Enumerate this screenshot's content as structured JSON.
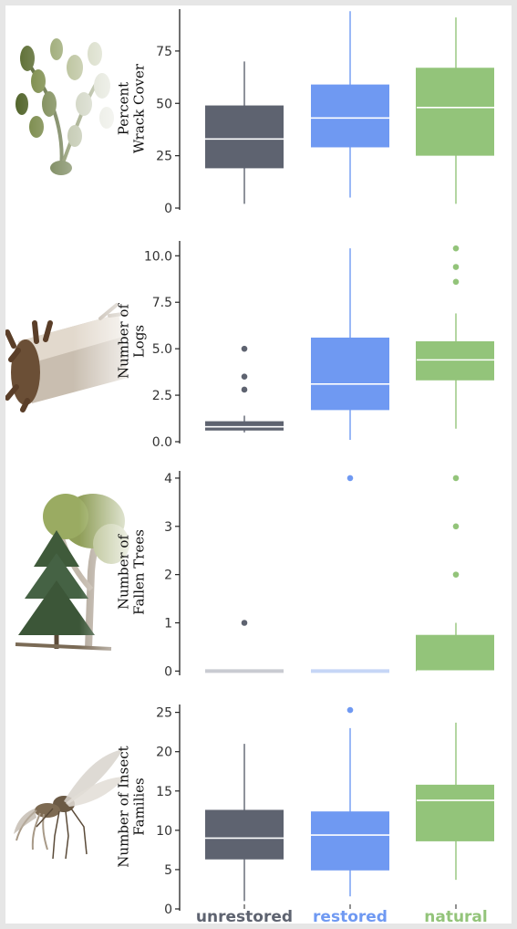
{
  "colors": {
    "unrestored": "#5e6370",
    "restored": "#6f99f2",
    "natural": "#93c47a",
    "unrestored_light": "#c9cbd2",
    "restored_light": "#c6d6f6"
  },
  "icons": [
    "seaweed-icon",
    "log-icon",
    "trees-icon",
    "insect-icon"
  ],
  "chart_data": [
    {
      "type": "box",
      "ylabel": [
        "Percent",
        "Wrack Cover"
      ],
      "ylim": [
        0,
        95
      ],
      "yticks": [
        0,
        25,
        50,
        75
      ],
      "ytick_labels": [
        "0",
        "25",
        "50",
        "75"
      ],
      "categories": [
        "unrestored",
        "restored",
        "natural"
      ],
      "boxes": [
        {
          "category": "unrestored",
          "min": 2,
          "q1": 19,
          "median": 33,
          "q3": 49,
          "max": 70,
          "outliers": []
        },
        {
          "category": "restored",
          "min": 5,
          "q1": 29,
          "median": 43,
          "q3": 59,
          "max": 94,
          "outliers": []
        },
        {
          "category": "natural",
          "min": 2,
          "q1": 25,
          "median": 48,
          "q3": 67,
          "max": 91,
          "outliers": []
        }
      ]
    },
    {
      "type": "box",
      "ylabel": [
        "Number of",
        "Logs"
      ],
      "ylim": [
        0,
        10.8
      ],
      "yticks": [
        0,
        2.5,
        5,
        7.5,
        10
      ],
      "ytick_labels": [
        "0.0",
        "2.5",
        "5.0",
        "7.5",
        "10.0"
      ],
      "categories": [
        "unrestored",
        "restored",
        "natural"
      ],
      "boxes": [
        {
          "category": "unrestored",
          "min": 0.5,
          "q1": 0.6,
          "median": 0.8,
          "q3": 1.1,
          "max": 1.4,
          "outliers": [
            2.8,
            3.5,
            5.0
          ]
        },
        {
          "category": "restored",
          "min": 0.1,
          "q1": 1.7,
          "median": 3.1,
          "q3": 5.6,
          "max": 10.4,
          "outliers": []
        },
        {
          "category": "natural",
          "min": 0.7,
          "q1": 3.3,
          "median": 4.4,
          "q3": 5.4,
          "max": 6.9,
          "outliers": [
            8.6,
            9.4,
            10.4
          ]
        }
      ]
    },
    {
      "type": "box",
      "ylabel": [
        "Number of",
        "Fallen Trees"
      ],
      "ylim": [
        -0.05,
        4.15
      ],
      "yticks": [
        0,
        1,
        2,
        3,
        4
      ],
      "ytick_labels": [
        "0",
        "1",
        "2",
        "3",
        "4"
      ],
      "categories": [
        "unrestored",
        "restored",
        "natural"
      ],
      "boxes": [
        {
          "category": "unrestored",
          "min": 0,
          "q1": 0,
          "median": 0,
          "q3": 0,
          "max": 0,
          "outliers": [
            1
          ]
        },
        {
          "category": "restored",
          "min": 0,
          "q1": 0,
          "median": 0,
          "q3": 0,
          "max": 0,
          "outliers": [
            4
          ]
        },
        {
          "category": "natural",
          "min": 0,
          "q1": 0,
          "median": 0,
          "q3": 0.75,
          "max": 1,
          "outliers": [
            2,
            3,
            4
          ]
        }
      ]
    },
    {
      "type": "box",
      "ylabel": [
        "Number of Insect",
        "Families"
      ],
      "ylim": [
        0,
        26
      ],
      "yticks": [
        0,
        5,
        10,
        15,
        20,
        25
      ],
      "ytick_labels": [
        "0",
        "5",
        "10",
        "15",
        "20",
        "25"
      ],
      "categories": [
        "unrestored",
        "restored",
        "natural"
      ],
      "boxes": [
        {
          "category": "unrestored",
          "min": 1,
          "q1": 6.3,
          "median": 9,
          "q3": 12.6,
          "max": 21,
          "outliers": []
        },
        {
          "category": "restored",
          "min": 1.6,
          "q1": 4.9,
          "median": 9.4,
          "q3": 12.4,
          "max": 23,
          "outliers": [
            25.3
          ]
        },
        {
          "category": "natural",
          "min": 3.7,
          "q1": 8.6,
          "median": 13.8,
          "q3": 15.8,
          "max": 23.7,
          "outliers": []
        }
      ]
    }
  ],
  "x_labels": [
    "unrestored",
    "restored",
    "natural"
  ]
}
